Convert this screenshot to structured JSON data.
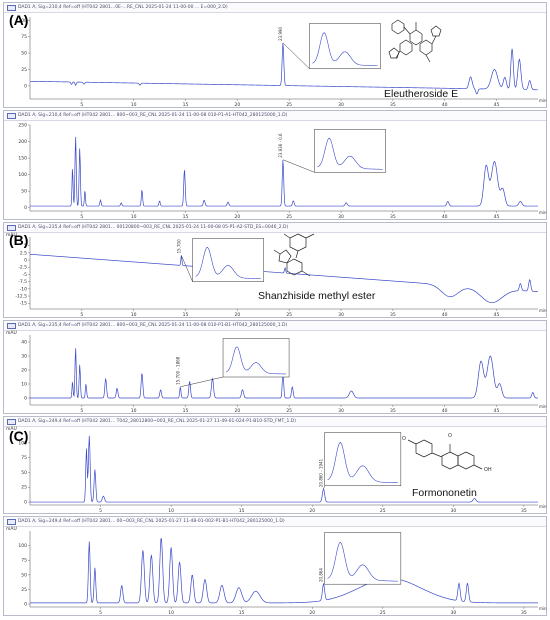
{
  "sections": {
    "a": "(A)",
    "b": "(B)",
    "c": "(C)"
  },
  "structures": {
    "formononetin_o": "O",
    "formononetin_oh": "OH"
  },
  "chart_data": [
    {
      "type": "line",
      "file_label": "DAD1 A, Sig=210,4 Ref=off (HT042 2801...0E-...RE_CNL 2025-01-24 11-00-00 ... E=000_2.D)",
      "compound": "Eleutheroside E",
      "unit": "",
      "xlim": [
        0,
        49
      ],
      "ylim": [
        -20,
        105
      ],
      "x_ticks": [
        5,
        10,
        15,
        20,
        25,
        30,
        35,
        40,
        45
      ],
      "y_ticks": [
        100,
        75,
        50,
        25,
        0,
        -25
      ],
      "tick_labels": [
        "5",
        "10",
        "15",
        "20",
        "25",
        "30",
        "35",
        "40",
        "45"
      ],
      "y_tick_labels": [
        "100",
        "75",
        "50",
        "25",
        "0",
        "-25"
      ],
      "x_unit_label": "min",
      "baseline_start": 7,
      "baseline_end": -6,
      "peaks": [
        [
          4.0,
          -4,
          0.06
        ],
        [
          4.4,
          -5,
          0.06
        ],
        [
          5.2,
          -3,
          0.08
        ],
        [
          10.6,
          -3,
          0.08
        ],
        [
          24.4,
          65,
          0.08
        ],
        [
          42.5,
          18,
          0.15
        ],
        [
          43.1,
          -8,
          0.1
        ],
        [
          44.8,
          30,
          0.3
        ],
        [
          45.8,
          18,
          0.15
        ],
        [
          46.5,
          62,
          0.12
        ],
        [
          47.2,
          46,
          0.15
        ],
        [
          48.2,
          14,
          0.12
        ]
      ],
      "peak_label": "23.990",
      "peak_time": 24.4,
      "inset": {
        "x": 0.55,
        "y": 0.08,
        "w": 0.14,
        "h": 0.55
      }
    },
    {
      "type": "line",
      "file_label": "DAD1 A, Sig=210,4 Ref=off (HT042 2801... 800~003_RE_CNL 2025-01-24 11-00-08 010-P1-A1-HT042_280125000_1.D)",
      "compound": "",
      "unit": "",
      "xlim": [
        0,
        49
      ],
      "ylim": [
        -10,
        250
      ],
      "x_ticks": [
        5,
        10,
        15,
        20,
        25,
        30,
        35,
        40,
        45
      ],
      "y_ticks": [
        250,
        200,
        150,
        100,
        50,
        0
      ],
      "tick_labels": [
        "5",
        "10",
        "15",
        "20",
        "25",
        "30",
        "35",
        "40",
        "45"
      ],
      "y_tick_labels": [
        "250",
        "200",
        "150",
        "100",
        "50",
        "0"
      ],
      "x_unit_label": "min",
      "baseline_start": 5,
      "baseline_end": 5,
      "peaks": [
        [
          4.1,
          118,
          0.05
        ],
        [
          4.4,
          212,
          0.06
        ],
        [
          4.8,
          176,
          0.06
        ],
        [
          5.3,
          48,
          0.05
        ],
        [
          6.8,
          18,
          0.06
        ],
        [
          8.8,
          10,
          0.06
        ],
        [
          10.8,
          50,
          0.06
        ],
        [
          12.5,
          16,
          0.06
        ],
        [
          14.9,
          112,
          0.07
        ],
        [
          16.8,
          18,
          0.08
        ],
        [
          19.1,
          12,
          0.08
        ],
        [
          24.4,
          140,
          0.07
        ],
        [
          25.4,
          16,
          0.08
        ],
        [
          30.5,
          10,
          0.1
        ],
        [
          40.3,
          14,
          0.1
        ],
        [
          44.0,
          120,
          0.22
        ],
        [
          44.8,
          135,
          0.3
        ],
        [
          45.6,
          50,
          0.2
        ],
        [
          47.3,
          14,
          0.15
        ]
      ],
      "peak_label": "23.936 - 0.6",
      "peak_time": 24.4,
      "inset": {
        "x": 0.56,
        "y": 0.05,
        "w": 0.14,
        "h": 0.5
      }
    },
    {
      "type": "line",
      "file_label": "DAD1 A, Sig=235,4 Ref=off (HT042 2801... 00120800~003_RE_CNL 2025-01-24 11-00-08 05-P1-A2-STD_ES=0046_2.D)",
      "compound": "Shanzhiside methyl ester",
      "unit": "mAU",
      "xlim": [
        0,
        49
      ],
      "ylim": [
        -17,
        8
      ],
      "x_ticks": [
        5,
        10,
        15,
        20,
        25,
        30,
        35,
        40,
        45
      ],
      "y_ticks": [
        5,
        2.5,
        0,
        -2.5,
        -5,
        -7.5,
        -10,
        -12.5,
        -15
      ],
      "tick_labels": [
        "5",
        "10",
        "15",
        "20",
        "25",
        "30",
        "35",
        "40",
        "45"
      ],
      "y_tick_labels": [
        "5",
        "2.5",
        "0",
        "-2.5",
        "-5",
        "-7.5",
        "-10",
        "-12.5",
        "-15"
      ],
      "x_unit_label": "min",
      "baseline_start": 2,
      "baseline_end": -11,
      "peaks": [
        [
          14.6,
          3.5,
          0.05
        ],
        [
          24.6,
          1.8,
          0.06
        ],
        [
          40.5,
          -4,
          0.8
        ],
        [
          44.5,
          -5,
          1.0
        ],
        [
          47.3,
          2.5,
          0.1
        ],
        [
          48.2,
          4,
          0.1
        ]
      ],
      "peak_label": "15.700",
      "peak_time": 14.6,
      "inset": {
        "x": 0.32,
        "y": 0.02,
        "w": 0.14,
        "h": 0.6
      }
    },
    {
      "type": "line",
      "file_label": "DAD1 A, Sig=235,4 Ref=off (HT042 2801... 800~003_RE_CNL 2025-01-24 11-00-08 010-P1-B1-HT042_280125000_1.D)",
      "compound": "",
      "unit": "mAU",
      "xlim": [
        0,
        49
      ],
      "ylim": [
        -5,
        45
      ],
      "x_ticks": [
        5,
        10,
        15,
        20,
        25,
        30,
        35,
        40,
        45
      ],
      "y_ticks": [
        40,
        30,
        20,
        10,
        0
      ],
      "tick_labels": [
        "5",
        "10",
        "15",
        "20",
        "25",
        "30",
        "35",
        "40",
        "45"
      ],
      "y_tick_labels": [
        "40",
        "30",
        "20",
        "10",
        "0"
      ],
      "x_unit_label": "min",
      "baseline_start": 0,
      "baseline_end": 0,
      "peaks": [
        [
          4.1,
          12,
          0.05
        ],
        [
          4.4,
          36,
          0.06
        ],
        [
          4.8,
          24,
          0.06
        ],
        [
          5.4,
          10,
          0.06
        ],
        [
          7.3,
          14,
          0.08
        ],
        [
          8.4,
          7,
          0.08
        ],
        [
          10.8,
          18,
          0.08
        ],
        [
          12.6,
          6,
          0.08
        ],
        [
          14.5,
          8,
          0.06
        ],
        [
          15.4,
          12,
          0.08
        ],
        [
          17.6,
          14,
          0.1
        ],
        [
          20.5,
          6,
          0.1
        ],
        [
          24.4,
          18,
          0.07
        ],
        [
          25.3,
          8,
          0.08
        ],
        [
          31.0,
          5,
          0.2
        ],
        [
          43.5,
          26,
          0.25
        ],
        [
          44.4,
          30,
          0.3
        ],
        [
          45.3,
          10,
          0.2
        ],
        [
          48.5,
          4,
          0.1
        ]
      ],
      "peak_label": "15.700 - 1868",
      "peak_time": 14.5,
      "inset": {
        "x": 0.38,
        "y": 0.05,
        "w": 0.13,
        "h": 0.55
      }
    },
    {
      "type": "line",
      "file_label": "DAD1 A, Sig=249,4 Ref=off (HT042 2801... T042_28012800~003_RE_CNL 2025-01-27 11-49-01-024-P1-B10-STD_FMT_1.D)",
      "compound": "Formononetin",
      "unit": "mAU",
      "xlim": [
        0,
        36
      ],
      "ylim": [
        -5,
        120
      ],
      "x_ticks": [
        5,
        10,
        15,
        20,
        25,
        30,
        35
      ],
      "y_ticks": [
        100,
        75,
        50,
        25,
        0
      ],
      "tick_labels": [
        "5",
        "10",
        "15",
        "20",
        "25",
        "30",
        "35"
      ],
      "y_tick_labels": [
        "100",
        "75",
        "50",
        "25",
        "0"
      ],
      "x_unit_label": "min",
      "baseline_start": 0,
      "baseline_end": 0,
      "peaks": [
        [
          4.0,
          90,
          0.05
        ],
        [
          4.2,
          112,
          0.06
        ],
        [
          4.6,
          55,
          0.06
        ],
        [
          5.2,
          10,
          0.08
        ],
        [
          20.8,
          22,
          0.08
        ],
        [
          31.5,
          6,
          0.1
        ]
      ],
      "peak_label": "20.860 - 1941",
      "peak_time": 20.8,
      "inset": {
        "x": 0.58,
        "y": 0.02,
        "w": 0.15,
        "h": 0.72
      }
    },
    {
      "type": "line",
      "file_label": "DAD1 A, Sig=249,4 Ref=off (HT042 2801... 00~003_RE_CNL 2025-01-27 11-48-01-002-P1-B1-HT042_280125000_1.D)",
      "compound": "",
      "unit": "mAU",
      "xlim": [
        0,
        36
      ],
      "ylim": [
        -5,
        125
      ],
      "x_ticks": [
        5,
        10,
        15,
        20,
        25,
        30,
        35
      ],
      "y_ticks": [
        100,
        75,
        50,
        25,
        0
      ],
      "tick_labels": [
        "5",
        "10",
        "15",
        "20",
        "25",
        "30",
        "35"
      ],
      "y_tick_labels": [
        "100",
        "75",
        "50",
        "25",
        "0"
      ],
      "x_unit_label": "min",
      "baseline_start": 2,
      "baseline_end": 2,
      "peaks": [
        [
          4.2,
          105,
          0.06
        ],
        [
          4.6,
          60,
          0.06
        ],
        [
          6.5,
          30,
          0.08
        ],
        [
          8.0,
          90,
          0.1
        ],
        [
          8.6,
          82,
          0.1
        ],
        [
          9.3,
          112,
          0.1
        ],
        [
          10.0,
          95,
          0.1
        ],
        [
          10.6,
          70,
          0.1
        ],
        [
          11.5,
          48,
          0.1
        ],
        [
          12.4,
          40,
          0.12
        ],
        [
          13.6,
          30,
          0.15
        ],
        [
          14.8,
          26,
          0.2
        ],
        [
          16.0,
          20,
          0.3
        ],
        [
          20.8,
          28,
          0.08
        ],
        [
          25.5,
          42,
          2.2
        ],
        [
          30.4,
          30,
          0.08
        ],
        [
          31.0,
          32,
          0.08
        ]
      ],
      "peak_label": "20.864",
      "peak_time": 20.8,
      "inset": {
        "x": 0.58,
        "y": 0.02,
        "w": 0.15,
        "h": 0.68
      }
    }
  ]
}
